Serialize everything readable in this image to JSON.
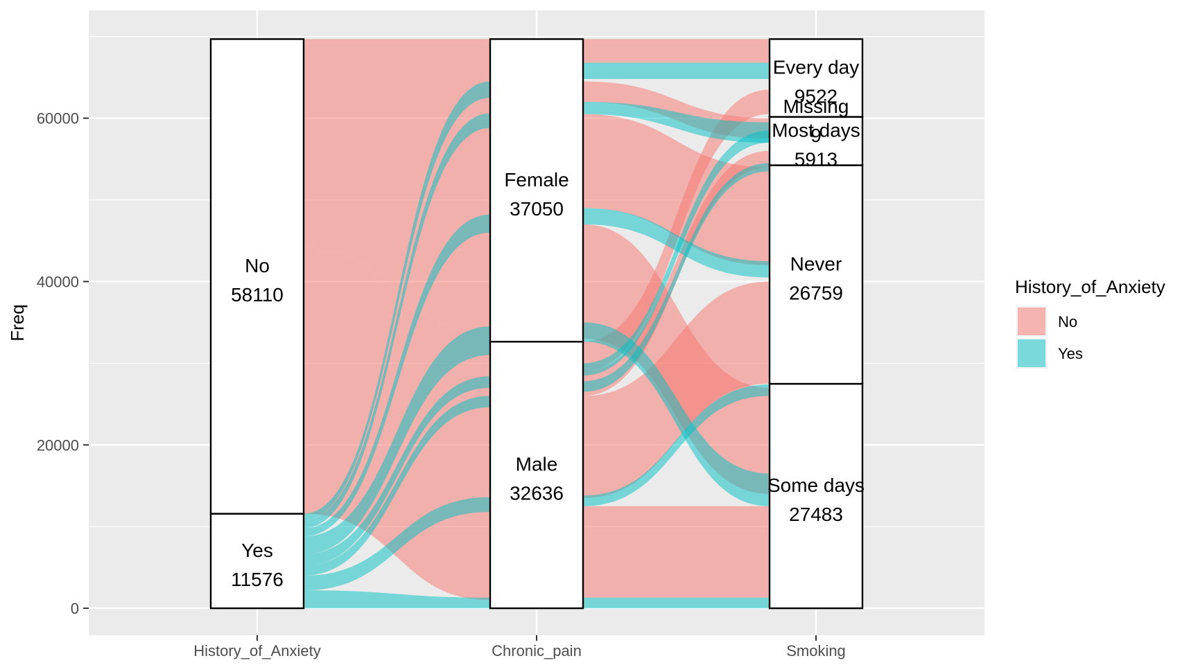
{
  "chart_data": {
    "type": "alluvial",
    "ylabel": "Freq",
    "ylim": [
      -3300,
      73200
    ],
    "y_ticks": [
      0,
      20000,
      40000,
      60000
    ],
    "y_tick_labels": [
      "0",
      "20000",
      "40000",
      "60000"
    ],
    "axes": [
      "History_of_Anxiety",
      "Chronic_pain",
      "Smoking"
    ],
    "total": 69686,
    "fill_variable": "History_of_Anxiety",
    "colors": {
      "No": "#F8766D",
      "Yes": "#00BFC4"
    },
    "strata": {
      "History_of_Anxiety": [
        {
          "name": "Yes",
          "value": 11576
        },
        {
          "name": "No",
          "value": 58110
        }
      ],
      "Chronic_pain": [
        {
          "name": "Male",
          "value": 32636
        },
        {
          "name": "Female",
          "value": 37050
        }
      ],
      "Smoking": [
        {
          "name": "Some days",
          "value": 27483
        },
        {
          "name": "Never",
          "value": 26759
        },
        {
          "name": "Most days",
          "value": 5913
        },
        {
          "name": "Missing",
          "value": 9
        },
        {
          "name": "Every day",
          "value": 9522
        }
      ]
    },
    "stratum_value_labels": {
      "History_of_Anxiety": [
        "11576",
        "58110"
      ],
      "Chronic_pain": [
        "32636",
        "37050"
      ],
      "Smoking": [
        "27483",
        "26759",
        "5913",
        "9",
        "9522"
      ]
    },
    "legend": {
      "title": "History_of_Anxiety",
      "entries": [
        "No",
        "Yes"
      ]
    }
  }
}
